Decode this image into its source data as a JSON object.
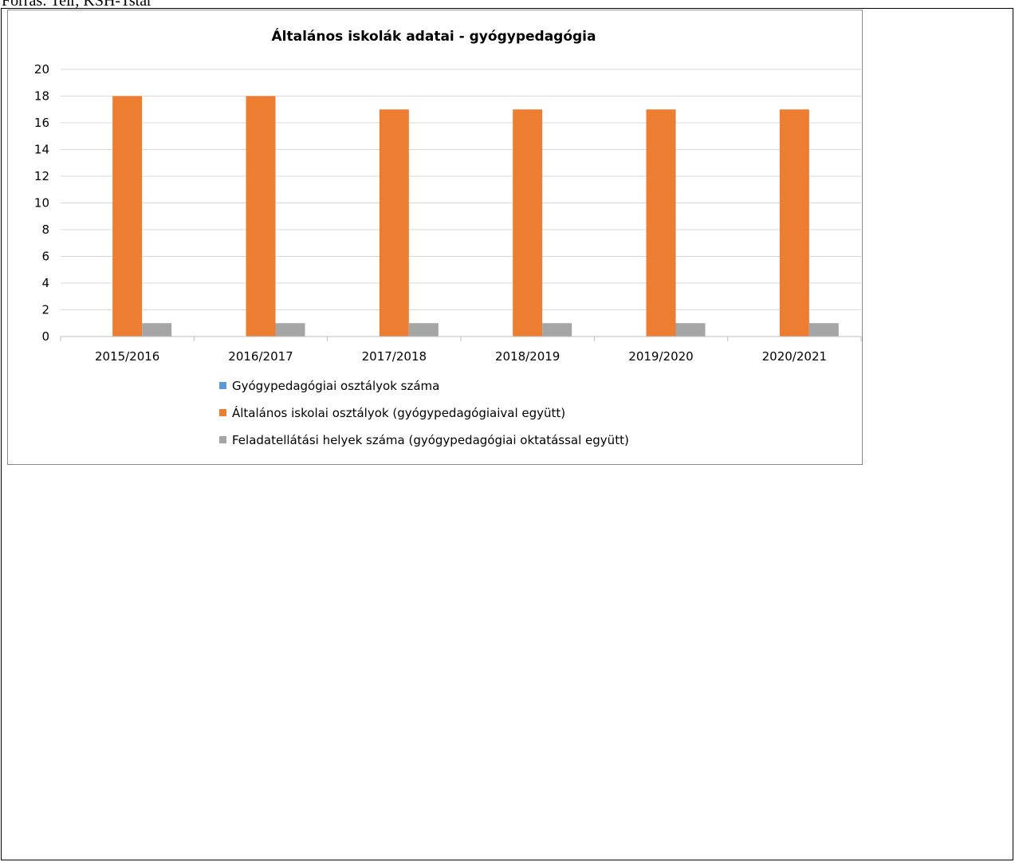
{
  "source_text": "Forrás: Teir, KSH-Tstar",
  "chart_data": {
    "type": "bar",
    "title": "Általános iskolák adatai - gyógypedagógia",
    "categories": [
      "2015/2016",
      "2016/2017",
      "2017/2018",
      "2018/2019",
      "2019/2020",
      "2020/2021"
    ],
    "series": [
      {
        "name": "Gyógypedagógiai osztályok száma",
        "color": "#5b9bd5",
        "values": [
          0,
          0,
          0,
          0,
          0,
          0
        ]
      },
      {
        "name": "Általános iskolai osztályok (gyógypedagógiaival együtt)",
        "color": "#ed7d31",
        "values": [
          18,
          18,
          17,
          17,
          17,
          17
        ]
      },
      {
        "name": "Feladatellátási helyek száma (gyógypedagógiai oktatással együtt)",
        "color": "#a5a5a5",
        "values": [
          1,
          1,
          1,
          1,
          1,
          1
        ]
      }
    ],
    "ylim": [
      0,
      20
    ],
    "yticks": [
      0,
      2,
      4,
      6,
      8,
      10,
      12,
      14,
      16,
      18,
      20
    ],
    "grid": true,
    "legend": "bottom"
  }
}
